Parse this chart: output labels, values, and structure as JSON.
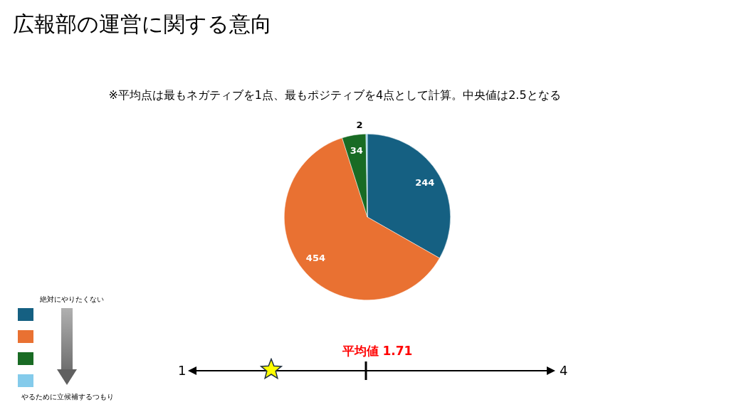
{
  "chart_data": [
    {
      "type": "pie",
      "title": "広報部の運営に関する意向",
      "subtitle": "※平均点は最もネガティブを1点、最もポジティブを4点として計算。中央値は2.5となる",
      "categories": [
        null,
        null,
        null,
        null
      ],
      "values": [
        244,
        454,
        34,
        2
      ],
      "colors": [
        "#156082",
        "#e97132",
        "#196b24",
        "#84cbeb"
      ],
      "data_labels": true,
      "annotations": [
        "絶対にやりたくない",
        "やるために立候補するつもり"
      ]
    },
    {
      "type": "other",
      "annotations": [
        "平均値  1.71",
        "1",
        "4"
      ]
    }
  ]
}
